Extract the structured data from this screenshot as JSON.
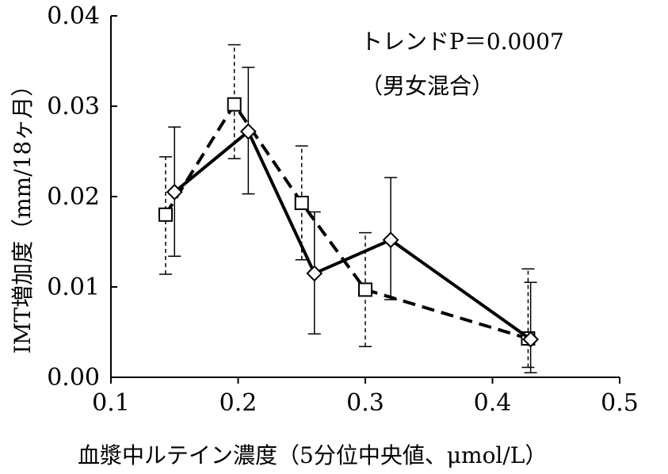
{
  "chart_data": {
    "type": "line",
    "xlabel": "血漿中ルテイン濃度（5分位中央値、μmol/L）",
    "ylabel": "IMT増加度（mm/18ヶ月）",
    "xlim": [
      0.1,
      0.5
    ],
    "ylim": [
      0.0,
      0.04
    ],
    "x_ticks": [
      "0.1",
      "0.2",
      "0.3",
      "0.4",
      "0.5"
    ],
    "y_ticks": [
      "0.00",
      "0.01",
      "0.02",
      "0.03",
      "0.04"
    ],
    "x_tick_values": [
      0.1,
      0.2,
      0.3,
      0.4,
      0.5
    ],
    "y_tick_values": [
      0.0,
      0.01,
      0.02,
      0.03,
      0.04
    ],
    "annotations": [
      "トレンドP＝0.0007",
      "（男女混合）"
    ],
    "grid": false,
    "series": [
      {
        "style": "dashed",
        "marker": "square",
        "x": [
          0.143,
          0.197,
          0.25,
          0.3,
          0.428
        ],
        "y": [
          0.018,
          0.0302,
          0.0193,
          0.0097,
          0.0043
        ],
        "err_low": [
          0.0114,
          0.0242,
          0.013,
          0.0034,
          0.0011
        ],
        "err_high": [
          0.0244,
          0.0368,
          0.0256,
          0.016,
          0.012
        ]
      },
      {
        "style": "solid",
        "marker": "diamond",
        "x": [
          0.15,
          0.208,
          0.26,
          0.32,
          0.43
        ],
        "y": [
          0.0205,
          0.0272,
          0.0115,
          0.0152,
          0.0042
        ],
        "err_low": [
          0.0134,
          0.0203,
          0.0048,
          0.0086,
          0.0005
        ],
        "err_high": [
          0.0277,
          0.0343,
          0.0183,
          0.0221,
          0.0105
        ]
      }
    ]
  }
}
